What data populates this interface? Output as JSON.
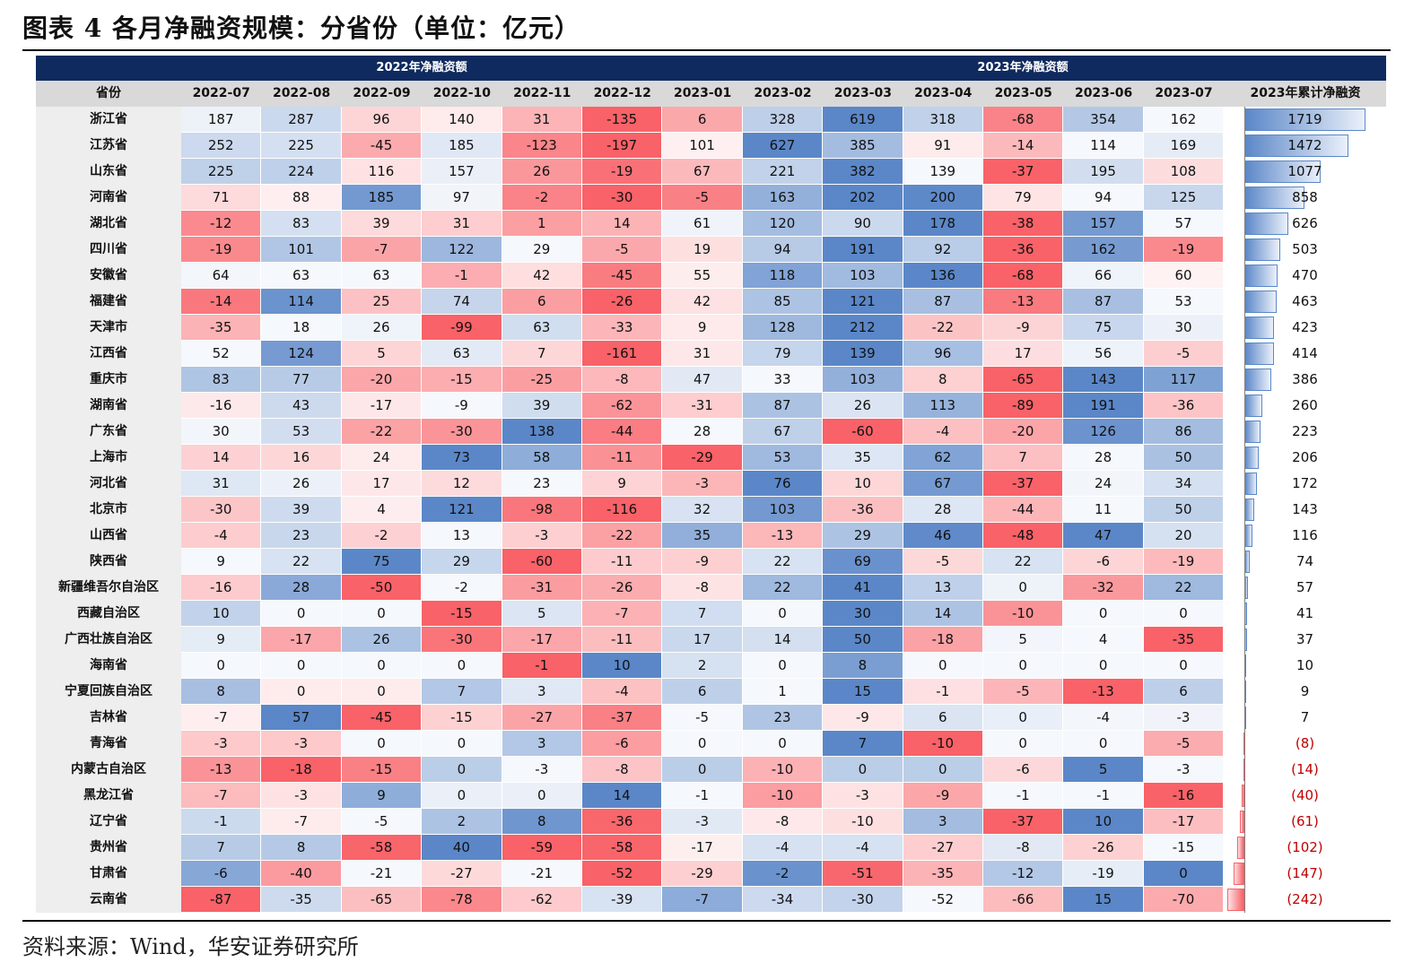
{
  "title": "图表 4  各月净融资规模：分省份（单位：亿元）",
  "source": "资料来源：Wind，华安证券研究所",
  "chart_data": {
    "type": "table",
    "group_headers": [
      "2022年净融资额",
      "2023年净融资额"
    ],
    "province_header": "省份",
    "months": [
      "2022-07",
      "2022-08",
      "2022-09",
      "2022-10",
      "2022-11",
      "2022-12",
      "2023-01",
      "2023-02",
      "2023-03",
      "2023-04",
      "2023-05",
      "2023-06",
      "2023-07"
    ],
    "total_header": "2023年累计净融资",
    "rows": [
      {
        "province": "浙江省",
        "values": [
          187,
          287,
          96,
          140,
          31,
          -135,
          6,
          328,
          619,
          318,
          -68,
          354,
          162
        ],
        "total": 1719,
        "total_label": "1719"
      },
      {
        "province": "江苏省",
        "values": [
          252,
          225,
          -45,
          185,
          -123,
          -197,
          101,
          627,
          385,
          91,
          -14,
          114,
          169
        ],
        "total": 1472,
        "total_label": "1472"
      },
      {
        "province": "山东省",
        "values": [
          225,
          224,
          116,
          157,
          26,
          -19,
          67,
          221,
          382,
          139,
          -37,
          195,
          108
        ],
        "total": 1077,
        "total_label": "1077"
      },
      {
        "province": "河南省",
        "values": [
          71,
          88,
          185,
          97,
          -2,
          -30,
          -5,
          163,
          202,
          200,
          79,
          94,
          125
        ],
        "total": 858,
        "total_label": "858"
      },
      {
        "province": "湖北省",
        "values": [
          -12,
          83,
          39,
          31,
          1,
          14,
          61,
          120,
          90,
          178,
          -38,
          157,
          57
        ],
        "total": 626,
        "total_label": "626"
      },
      {
        "province": "四川省",
        "values": [
          -19,
          101,
          -7,
          122,
          29,
          -5,
          19,
          94,
          191,
          92,
          -36,
          162,
          -19
        ],
        "total": 503,
        "total_label": "503"
      },
      {
        "province": "安徽省",
        "values": [
          64,
          63,
          63,
          -1,
          42,
          -45,
          55,
          118,
          103,
          136,
          -68,
          66,
          60
        ],
        "total": 470,
        "total_label": "470"
      },
      {
        "province": "福建省",
        "values": [
          -14,
          114,
          25,
          74,
          6,
          -26,
          42,
          85,
          121,
          87,
          -13,
          87,
          53
        ],
        "total": 463,
        "total_label": "463"
      },
      {
        "province": "天津市",
        "values": [
          -35,
          18,
          26,
          -99,
          63,
          -33,
          9,
          128,
          212,
          -22,
          -9,
          75,
          30
        ],
        "total": 423,
        "total_label": "423"
      },
      {
        "province": "江西省",
        "values": [
          52,
          124,
          5,
          63,
          7,
          -161,
          31,
          79,
          139,
          96,
          17,
          56,
          -5
        ],
        "total": 414,
        "total_label": "414"
      },
      {
        "province": "重庆市",
        "values": [
          83,
          77,
          -20,
          -15,
          -25,
          -8,
          47,
          33,
          103,
          8,
          -65,
          143,
          117
        ],
        "total": 386,
        "total_label": "386"
      },
      {
        "province": "湖南省",
        "values": [
          -16,
          43,
          -17,
          -9,
          39,
          -62,
          -31,
          87,
          26,
          113,
          -89,
          191,
          -36
        ],
        "total": 260,
        "total_label": "260"
      },
      {
        "province": "广东省",
        "values": [
          30,
          53,
          -22,
          -30,
          138,
          -44,
          28,
          67,
          -60,
          -4,
          -20,
          126,
          86
        ],
        "total": 223,
        "total_label": "223"
      },
      {
        "province": "上海市",
        "values": [
          14,
          16,
          24,
          73,
          58,
          -11,
          -29,
          53,
          35,
          62,
          7,
          28,
          50
        ],
        "total": 206,
        "total_label": "206"
      },
      {
        "province": "河北省",
        "values": [
          31,
          26,
          17,
          12,
          23,
          9,
          -3,
          76,
          10,
          67,
          -37,
          24,
          34
        ],
        "total": 172,
        "total_label": "172"
      },
      {
        "province": "北京市",
        "values": [
          -30,
          39,
          4,
          121,
          -98,
          -116,
          32,
          103,
          -36,
          28,
          -44,
          11,
          50
        ],
        "total": 143,
        "total_label": "143"
      },
      {
        "province": "山西省",
        "values": [
          -4,
          23,
          -2,
          13,
          -3,
          -22,
          35,
          -13,
          29,
          46,
          -48,
          47,
          20
        ],
        "total": 116,
        "total_label": "116"
      },
      {
        "province": "陕西省",
        "values": [
          9,
          22,
          75,
          29,
          -60,
          -11,
          -9,
          22,
          69,
          -5,
          22,
          -6,
          -19
        ],
        "total": 74,
        "total_label": "74"
      },
      {
        "province": "新疆维吾尔自治区",
        "values": [
          -16,
          28,
          -50,
          -2,
          -31,
          -26,
          -8,
          22,
          41,
          13,
          0,
          -32,
          22
        ],
        "total": 57,
        "total_label": "57"
      },
      {
        "province": "西藏自治区",
        "values": [
          10,
          0,
          0,
          -15,
          5,
          -7,
          7,
          0,
          30,
          14,
          -10,
          0,
          0
        ],
        "total": 41,
        "total_label": "41"
      },
      {
        "province": "广西壮族自治区",
        "values": [
          9,
          -17,
          26,
          -30,
          -17,
          -11,
          17,
          14,
          50,
          -18,
          5,
          4,
          -35
        ],
        "total": 37,
        "total_label": "37"
      },
      {
        "province": "海南省",
        "values": [
          0,
          0,
          0,
          0,
          -1,
          10,
          2,
          0,
          8,
          0,
          0,
          0,
          0
        ],
        "total": 10,
        "total_label": "10"
      },
      {
        "province": "宁夏回族自治区",
        "values": [
          8,
          0,
          0,
          7,
          3,
          -4,
          6,
          1,
          15,
          -1,
          -5,
          -13,
          6
        ],
        "total": 9,
        "total_label": "9"
      },
      {
        "province": "吉林省",
        "values": [
          -7,
          57,
          -45,
          -15,
          -27,
          -37,
          -5,
          23,
          -9,
          6,
          0,
          -4,
          -3
        ],
        "total": 7,
        "total_label": "7"
      },
      {
        "province": "青海省",
        "values": [
          -3,
          -3,
          0,
          0,
          3,
          -6,
          0,
          0,
          7,
          -10,
          0,
          0,
          -5
        ],
        "total": -8,
        "total_label": "(8)"
      },
      {
        "province": "内蒙古自治区",
        "values": [
          -13,
          -18,
          -15,
          0,
          -3,
          -8,
          0,
          -10,
          0,
          0,
          -6,
          5,
          -3
        ],
        "total": -14,
        "total_label": "(14)"
      },
      {
        "province": "黑龙江省",
        "values": [
          -7,
          -3,
          9,
          0,
          0,
          14,
          -1,
          -10,
          -3,
          -9,
          -1,
          -1,
          -16
        ],
        "total": -40,
        "total_label": "(40)"
      },
      {
        "province": "辽宁省",
        "values": [
          -1,
          -7,
          -5,
          2,
          8,
          -36,
          -3,
          -8,
          -10,
          3,
          -37,
          10,
          -17
        ],
        "total": -61,
        "total_label": "(61)"
      },
      {
        "province": "贵州省",
        "values": [
          7,
          8,
          -58,
          40,
          -59,
          -58,
          -17,
          -4,
          -4,
          -27,
          -8,
          -26,
          -15
        ],
        "total": -102,
        "total_label": "(102)"
      },
      {
        "province": "甘肃省",
        "values": [
          -6,
          -40,
          -21,
          -27,
          -21,
          -52,
          -29,
          -2,
          -51,
          -35,
          -12,
          -19,
          0
        ],
        "total": -147,
        "total_label": "(147)"
      },
      {
        "province": "云南省",
        "values": [
          -87,
          -35,
          -65,
          -78,
          -62,
          -39,
          -7,
          -34,
          -30,
          -52,
          -66,
          15,
          -70
        ],
        "total": -242,
        "total_label": "(242)"
      }
    ],
    "colors": {
      "positive": "#5b87c8",
      "negative": "#f86268",
      "neutral": "#ffffff",
      "band": "#0f2a5f",
      "negative_text": "#c00000"
    }
  }
}
